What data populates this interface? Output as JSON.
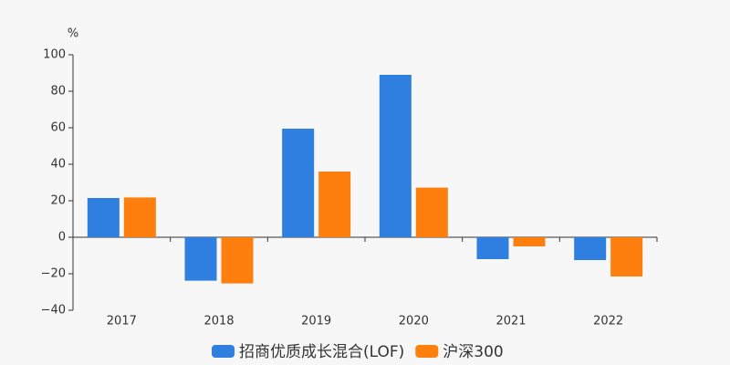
{
  "chart_data": {
    "type": "bar",
    "y_unit": "%",
    "categories": [
      "2017",
      "2018",
      "2019",
      "2020",
      "2021",
      "2022"
    ],
    "series": [
      {
        "name": "招商优质成长混合(LOF)",
        "color": "#2e7fe0",
        "values": [
          21.5,
          -23.8,
          59.5,
          89,
          -12,
          -12.5
        ]
      },
      {
        "name": "沪深300",
        "color": "#ff7f0e",
        "values": [
          21.8,
          -25.3,
          36,
          27.2,
          -5,
          -21.5
        ]
      }
    ],
    "ylim": [
      -40,
      100
    ],
    "yticks": [
      {
        "value": -40,
        "label": "−40"
      },
      {
        "value": -20,
        "label": "−20"
      },
      0,
      20,
      40,
      60,
      80,
      100
    ],
    "grid": false
  }
}
